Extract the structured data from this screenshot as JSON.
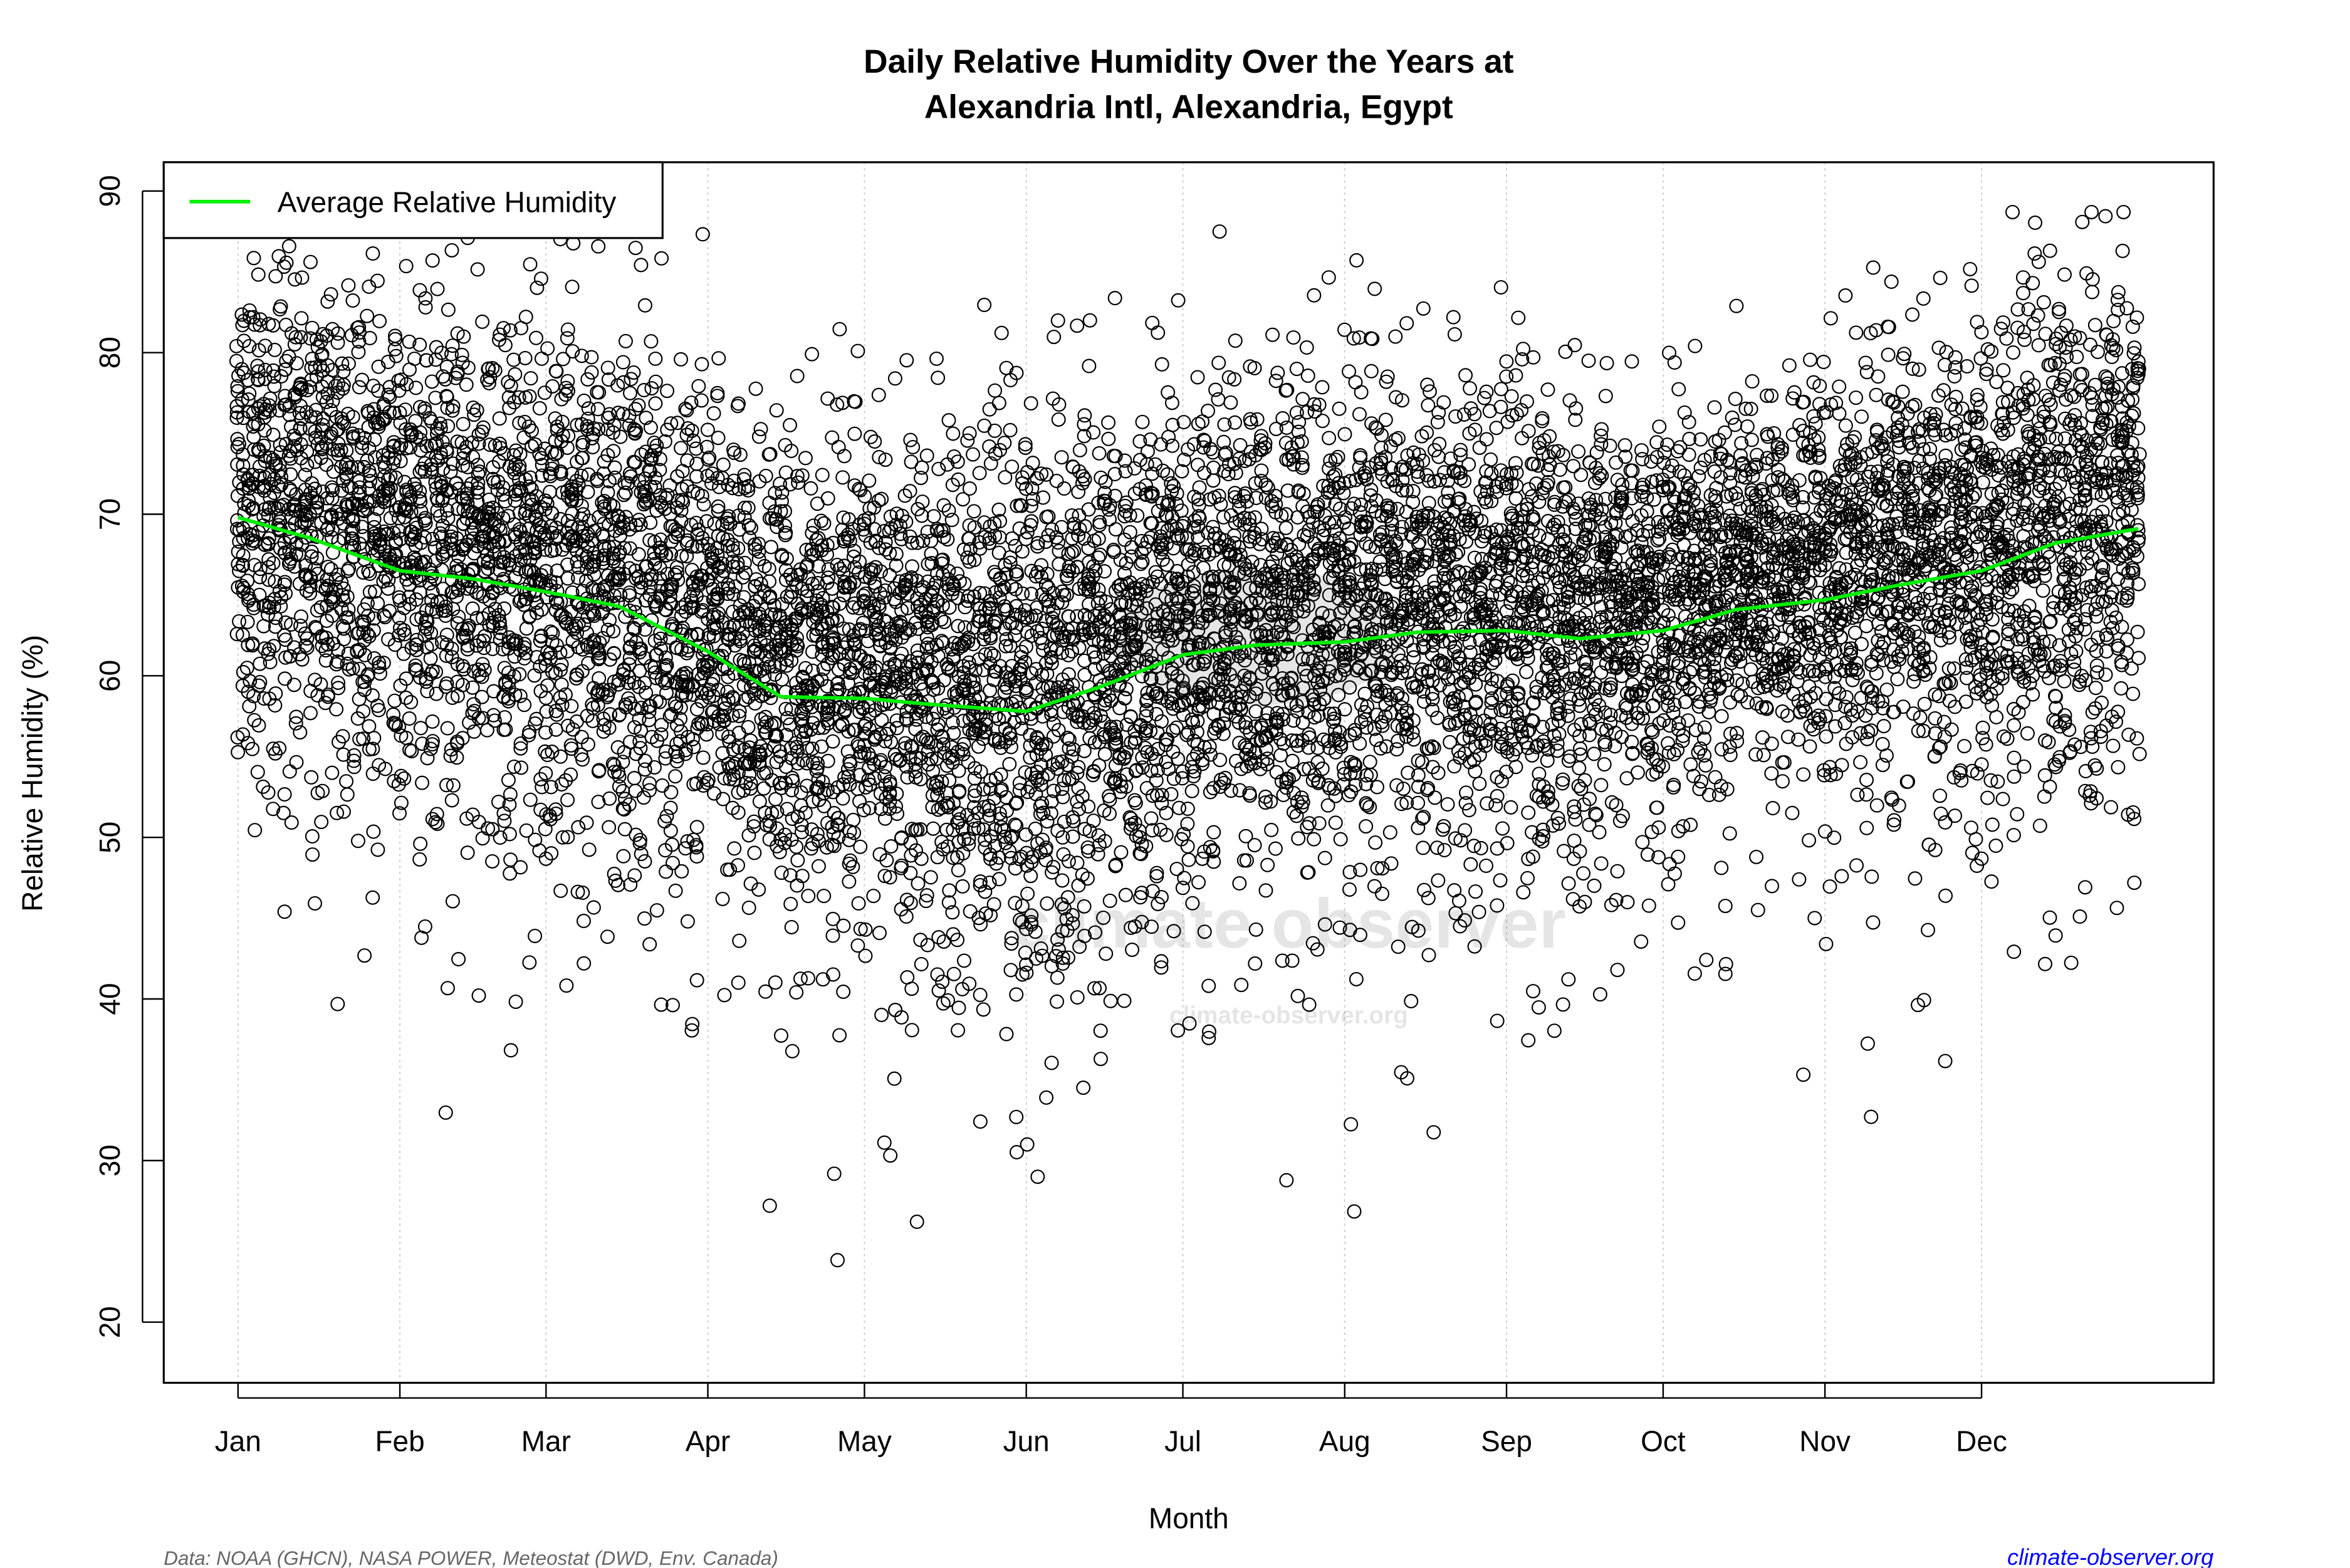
{
  "chart_data": {
    "type": "scatter",
    "title": [
      "Daily Relative Humidity Over the Years at",
      "Alexandria Intl, Alexandria, Egypt"
    ],
    "xlabel": "Month",
    "ylabel": "Relative Humidity  (%)",
    "xticks": [
      "Jan",
      "Feb",
      "Mar",
      "Apr",
      "May",
      "Jun",
      "Jul",
      "Aug",
      "Sep",
      "Oct",
      "Nov",
      "Dec"
    ],
    "xtick_days": [
      1,
      32,
      60,
      91,
      121,
      152,
      182,
      213,
      244,
      274,
      305,
      335
    ],
    "xlim_days": [
      1,
      365
    ],
    "ylim": [
      18,
      92
    ],
    "yticks": [
      20,
      30,
      40,
      50,
      60,
      70,
      80,
      90
    ],
    "grid": "vertical dotted at month ticks",
    "legend": {
      "position": "top-left",
      "entries": [
        {
          "label": "Average Relative Humidity",
          "color": "#00ee00"
        }
      ]
    },
    "series": [
      {
        "name": "Average Relative Humidity",
        "type": "line",
        "color": "#00ee00",
        "x_days": [
          1,
          15,
          32,
          46,
          60,
          74,
          91,
          105,
          121,
          135,
          152,
          166,
          182,
          196,
          213,
          227,
          244,
          258,
          274,
          288,
          305,
          319,
          335,
          349,
          365
        ],
        "values": [
          69.8,
          68.5,
          66.5,
          66.0,
          65.2,
          64.3,
          61.5,
          58.7,
          58.6,
          58.2,
          57.8,
          59.3,
          61.3,
          61.9,
          62.1,
          62.7,
          62.8,
          62.3,
          62.8,
          64.1,
          64.7,
          65.6,
          66.5,
          68.2,
          69.1
        ]
      },
      {
        "type": "scatter",
        "marker": "open circle",
        "color": "#000000",
        "description": "daily observations, range approx 19–89%"
      }
    ]
  },
  "watermark": {
    "logo": "climate observer",
    "url": "climate-observer.org"
  },
  "footer": {
    "source": "Data: NOAA (GHCN), NASA POWER, Meteostat (DWD, Env. Canada)",
    "site": "climate-observer.org",
    "site_color": "#0000ff"
  }
}
